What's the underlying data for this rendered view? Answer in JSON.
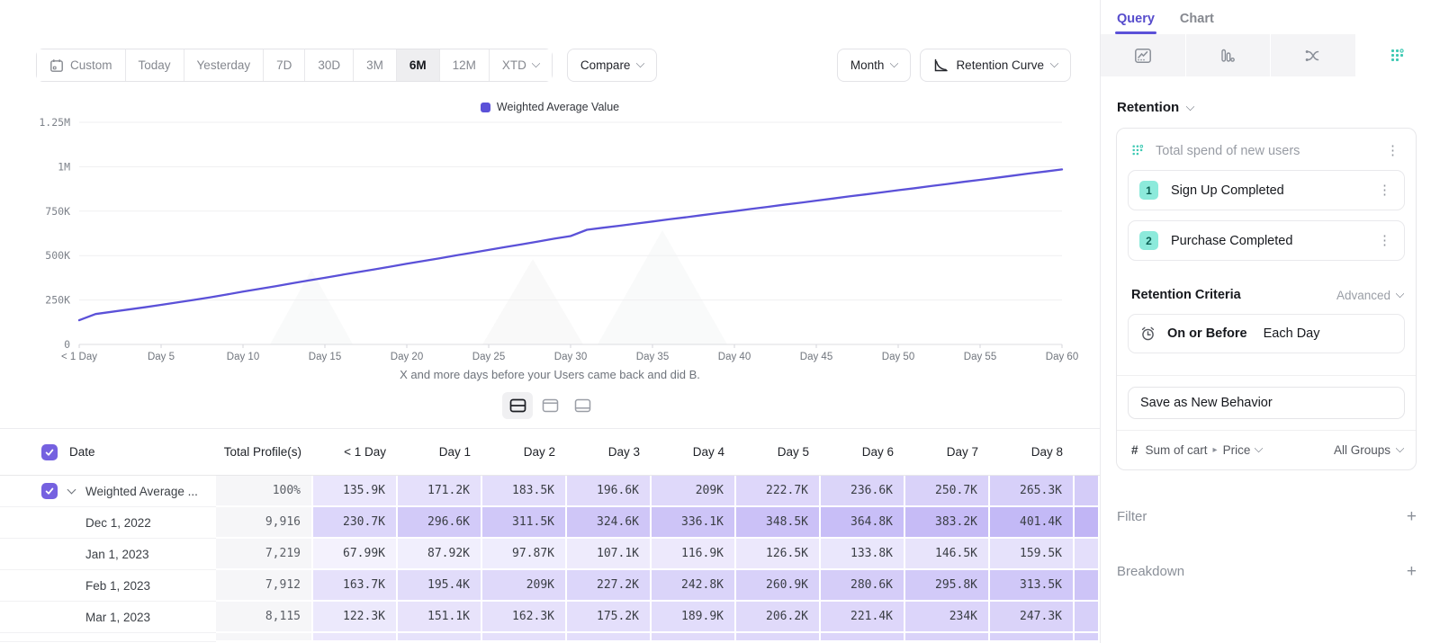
{
  "colors": {
    "accent": "#5b51d8",
    "checkbox": "#7561e0",
    "heat_rgb": "113,87,233",
    "teal": "#3ec9b3",
    "badge_bg": "#8ceadb",
    "badge_text": "#0b5e52"
  },
  "toolbar": {
    "date_ranges": [
      "Custom",
      "Today",
      "Yesterday",
      "7D",
      "30D",
      "3M",
      "6M",
      "12M",
      "XTD"
    ],
    "active_range": "6M",
    "compare_label": "Compare",
    "granularity_label": "Month",
    "chart_type_label": "Retention Curve"
  },
  "chart_data": {
    "type": "line",
    "legend": [
      "Weighted Average Value"
    ],
    "xlabel": "",
    "ylabel": "",
    "ylim": [
      0,
      1250000
    ],
    "y_tick_values": [
      0,
      250,
      500,
      750,
      1000,
      1250
    ],
    "y_tick_labels": [
      "0",
      "250K",
      "500K",
      "750K",
      "1M",
      "1.25M"
    ],
    "x_tick_days": [
      0,
      5,
      10,
      15,
      20,
      25,
      30,
      35,
      40,
      45,
      50,
      55,
      60
    ],
    "x_tick_labels": [
      "< 1 Day",
      "Day 5",
      "Day 10",
      "Day 15",
      "Day 20",
      "Day 25",
      "Day 30",
      "Day 35",
      "Day 40",
      "Day 45",
      "Day 50",
      "Day 55",
      "Day 60"
    ],
    "caption": "X and more days before your Users came back and did B.",
    "series": [
      {
        "name": "Weighted Average Value",
        "color": "#5b51d8",
        "days": [
          0,
          1,
          2,
          3,
          4,
          5,
          6,
          7,
          8,
          9,
          10,
          11,
          12,
          13,
          14,
          15,
          16,
          17,
          18,
          19,
          20,
          21,
          22,
          23,
          24,
          25,
          26,
          27,
          28,
          29,
          30,
          31,
          32,
          33,
          34,
          35,
          36,
          37,
          38,
          39,
          40,
          41,
          42,
          43,
          44,
          45,
          46,
          47,
          48,
          49,
          50,
          51,
          52,
          53,
          54,
          55,
          56,
          57,
          58,
          59,
          60
        ],
        "values_k": [
          135.9,
          171.2,
          183.5,
          196.6,
          209,
          222.7,
          236.6,
          250.7,
          265.3,
          281,
          297,
          312,
          328,
          344,
          360,
          375,
          391,
          407,
          422,
          438,
          454,
          469,
          485,
          501,
          516,
          532,
          548,
          563,
          579,
          595,
          610,
          645,
          657,
          668,
          680,
          692,
          704,
          715,
          727,
          739,
          750,
          762,
          774,
          786,
          797,
          809,
          821,
          833,
          844,
          856,
          868,
          879,
          891,
          903,
          915,
          926,
          938,
          950,
          962,
          973,
          985
        ]
      }
    ]
  },
  "table": {
    "columns": [
      "Date",
      "Total Profile(s)",
      "< 1 Day",
      "Day 1",
      "Day 2",
      "Day 3",
      "Day 4",
      "Day 5",
      "Day 6",
      "Day 7",
      "Day 8"
    ],
    "rows": [
      {
        "label": "Weighted Average ...",
        "profiles": "100%",
        "expandable": true,
        "values": [
          "135.9K",
          "171.2K",
          "183.5K",
          "196.6K",
          "209K",
          "222.7K",
          "236.6K",
          "250.7K",
          "265.3K"
        ]
      },
      {
        "label": "Dec 1, 2022",
        "profiles": "9,916",
        "values": [
          "230.7K",
          "296.6K",
          "311.5K",
          "324.6K",
          "336.1K",
          "348.5K",
          "364.8K",
          "383.2K",
          "401.4K"
        ]
      },
      {
        "label": "Jan 1, 2023",
        "profiles": "7,219",
        "values": [
          "67.99K",
          "87.92K",
          "97.87K",
          "107.1K",
          "116.9K",
          "126.5K",
          "133.8K",
          "146.5K",
          "159.5K"
        ]
      },
      {
        "label": "Feb 1, 2023",
        "profiles": "7,912",
        "values": [
          "163.7K",
          "195.4K",
          "209K",
          "227.2K",
          "242.8K",
          "260.9K",
          "280.6K",
          "295.8K",
          "313.5K"
        ]
      },
      {
        "label": "Mar 1, 2023",
        "profiles": "8,115",
        "values": [
          "122.3K",
          "151.1K",
          "162.3K",
          "175.2K",
          "189.9K",
          "206.2K",
          "221.4K",
          "234K",
          "247.3K"
        ]
      }
    ]
  },
  "panel": {
    "tabs": [
      "Query",
      "Chart"
    ],
    "active_tab": "Query",
    "section_label": "Retention",
    "behavior": {
      "title": "Total spend of new users",
      "steps": [
        {
          "num": "1",
          "label": "Sign Up Completed"
        },
        {
          "num": "2",
          "label": "Purchase Completed"
        }
      ]
    },
    "criteria": {
      "heading": "Retention Criteria",
      "advanced_label": "Advanced",
      "condition": "On or Before",
      "period": "Each Day"
    },
    "save_button": "Save as New Behavior",
    "measure": {
      "prefix": "#",
      "event": "Sum of cart",
      "property": "Price",
      "groups": "All Groups"
    },
    "filter_label": "Filter",
    "breakdown_label": "Breakdown"
  },
  "icons": {
    "kebab": "⋮",
    "caret": "▸",
    "plus": "+"
  }
}
